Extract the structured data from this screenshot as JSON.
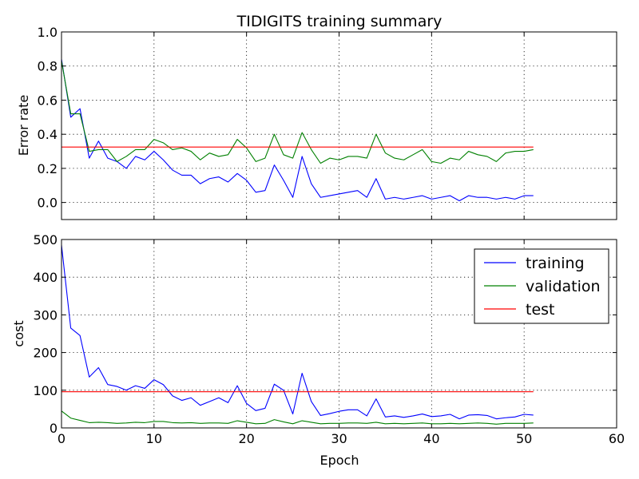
{
  "chart_data": [
    {
      "type": "line",
      "title": "TIDIGITS training summary",
      "xlabel": "",
      "ylabel": "Error rate",
      "xlim": [
        0,
        60
      ],
      "ylim": [
        -0.1,
        1.0
      ],
      "xticks": [
        0,
        10,
        20,
        30,
        40,
        50,
        60
      ],
      "xtick_labels": [
        "",
        "",
        "",
        "",
        "",
        "",
        ""
      ],
      "yticks": [
        0.0,
        0.2,
        0.4,
        0.6,
        0.8,
        1.0
      ],
      "ytick_labels": [
        "0.0",
        "0.2",
        "0.4",
        "0.6",
        "0.8",
        "1.0"
      ],
      "grid": true,
      "legend": "none",
      "x": [
        0,
        1,
        2,
        3,
        4,
        5,
        6,
        7,
        8,
        9,
        10,
        11,
        12,
        13,
        14,
        15,
        16,
        17,
        18,
        19,
        20,
        21,
        22,
        23,
        24,
        25,
        26,
        27,
        28,
        29,
        30,
        31,
        32,
        33,
        34,
        35,
        36,
        37,
        38,
        39,
        40,
        41,
        42,
        43,
        44,
        45,
        46,
        47,
        48,
        49,
        50,
        51
      ],
      "series": [
        {
          "name": "training",
          "color": "#0000ff",
          "values": [
            0.84,
            0.5,
            0.55,
            0.26,
            0.36,
            0.26,
            0.24,
            0.2,
            0.27,
            0.25,
            0.3,
            0.25,
            0.19,
            0.16,
            0.16,
            0.11,
            0.14,
            0.15,
            0.12,
            0.17,
            0.13,
            0.06,
            0.07,
            0.22,
            0.13,
            0.03,
            0.27,
            0.11,
            0.03,
            0.04,
            0.05,
            0.06,
            0.07,
            0.03,
            0.14,
            0.02,
            0.03,
            0.02,
            0.03,
            0.04,
            0.02,
            0.03,
            0.04,
            0.01,
            0.04,
            0.03,
            0.03,
            0.02,
            0.03,
            0.02,
            0.04,
            0.04
          ]
        },
        {
          "name": "validation",
          "color": "#008000",
          "values": [
            0.83,
            0.52,
            0.52,
            0.3,
            0.31,
            0.31,
            0.24,
            0.27,
            0.31,
            0.31,
            0.37,
            0.35,
            0.31,
            0.32,
            0.3,
            0.25,
            0.29,
            0.27,
            0.28,
            0.37,
            0.32,
            0.24,
            0.26,
            0.4,
            0.28,
            0.26,
            0.41,
            0.31,
            0.23,
            0.26,
            0.25,
            0.27,
            0.27,
            0.26,
            0.4,
            0.29,
            0.26,
            0.25,
            0.28,
            0.31,
            0.24,
            0.23,
            0.26,
            0.25,
            0.3,
            0.28,
            0.27,
            0.24,
            0.29,
            0.3,
            0.3,
            0.31
          ]
        },
        {
          "name": "test",
          "color": "#ff0000",
          "x_range": [
            0,
            51
          ],
          "constant": 0.325
        }
      ]
    },
    {
      "type": "line",
      "title": "",
      "xlabel": "Epoch",
      "ylabel": "cost",
      "xlim": [
        0,
        60
      ],
      "ylim": [
        0,
        500
      ],
      "xticks": [
        0,
        10,
        20,
        30,
        40,
        50,
        60
      ],
      "xtick_labels": [
        "0",
        "10",
        "20",
        "30",
        "40",
        "50",
        "60"
      ],
      "yticks": [
        0,
        100,
        200,
        300,
        400,
        500
      ],
      "ytick_labels": [
        "0",
        "100",
        "200",
        "300",
        "400",
        "500"
      ],
      "grid": true,
      "legend": "top-right",
      "x": [
        0,
        1,
        2,
        3,
        4,
        5,
        6,
        7,
        8,
        9,
        10,
        11,
        12,
        13,
        14,
        15,
        16,
        17,
        18,
        19,
        20,
        21,
        22,
        23,
        24,
        25,
        26,
        27,
        28,
        29,
        30,
        31,
        32,
        33,
        34,
        35,
        36,
        37,
        38,
        39,
        40,
        41,
        42,
        43,
        44,
        45,
        46,
        47,
        48,
        49,
        50,
        51
      ],
      "series": [
        {
          "name": "training",
          "color": "#0000ff",
          "values": [
            485,
            265,
            245,
            135,
            160,
            115,
            110,
            100,
            112,
            105,
            128,
            115,
            85,
            73,
            80,
            60,
            70,
            80,
            67,
            112,
            65,
            46,
            52,
            116,
            100,
            37,
            145,
            70,
            33,
            38,
            44,
            48,
            48,
            32,
            77,
            29,
            32,
            28,
            32,
            37,
            30,
            32,
            36,
            24,
            34,
            35,
            33,
            24,
            27,
            29,
            36,
            34
          ]
        },
        {
          "name": "validation",
          "color": "#008000",
          "values": [
            45,
            26,
            20,
            14,
            15,
            14,
            12,
            13,
            15,
            14,
            17,
            17,
            14,
            13,
            14,
            12,
            13,
            13,
            12,
            19,
            15,
            11,
            12,
            22,
            16,
            11,
            19,
            15,
            11,
            12,
            12,
            13,
            13,
            12,
            15,
            11,
            12,
            11,
            12,
            13,
            11,
            11,
            12,
            11,
            12,
            13,
            12,
            10,
            12,
            12,
            12,
            13
          ]
        },
        {
          "name": "test",
          "color": "#ff0000",
          "x_range": [
            0,
            51
          ],
          "constant": 96
        }
      ]
    }
  ]
}
